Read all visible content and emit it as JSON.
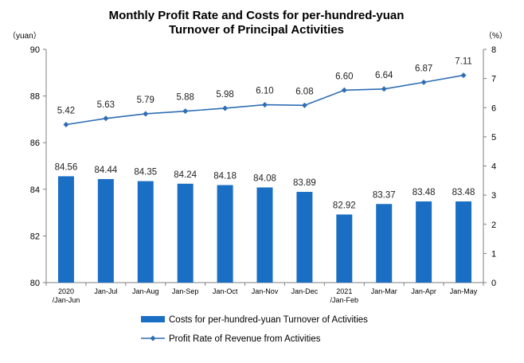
{
  "chart_data": {
    "type": "bar+line",
    "title_line1": "Monthly Profit Rate and Costs for per-hundred-yuan",
    "title_line2": "Turnover of Principal Activities",
    "left_unit": "（yuan）",
    "right_unit": "（%）",
    "categories": [
      [
        "2020",
        "/Jan-Jun"
      ],
      [
        "Jan-Jul"
      ],
      [
        "Jan-Aug"
      ],
      [
        "Jan-Sep"
      ],
      [
        "Jan-Oct"
      ],
      [
        "Jan-Nov"
      ],
      [
        "Jan-Dec"
      ],
      [
        "2021",
        "/Jan-Feb"
      ],
      [
        "Jan-Mar"
      ],
      [
        "Jan-Apr"
      ],
      [
        "Jan-May"
      ]
    ],
    "series": [
      {
        "name": "Costs for per-hundred-yuan Turnover of  Activities",
        "type": "bar",
        "axis": "left",
        "color": "#1a6fc4",
        "values": [
          84.56,
          84.44,
          84.35,
          84.24,
          84.18,
          84.08,
          83.89,
          82.92,
          83.37,
          83.48,
          83.48
        ]
      },
      {
        "name": "Profit Rate of Revenue from Activities",
        "type": "line",
        "axis": "right",
        "color": "#2e6db4",
        "values": [
          5.42,
          5.63,
          5.79,
          5.88,
          5.98,
          6.1,
          6.08,
          6.6,
          6.64,
          6.87,
          7.11
        ]
      }
    ],
    "left_axis": {
      "min": 80,
      "max": 90,
      "step": 2,
      "ticks": [
        "80",
        "82",
        "84",
        "86",
        "88",
        "90"
      ]
    },
    "right_axis": {
      "min": 0,
      "max": 8,
      "step": 1,
      "ticks": [
        "0",
        "1",
        "2",
        "3",
        "4",
        "5",
        "6",
        "7",
        "8"
      ]
    },
    "grid": false,
    "legend_position": "bottom"
  }
}
